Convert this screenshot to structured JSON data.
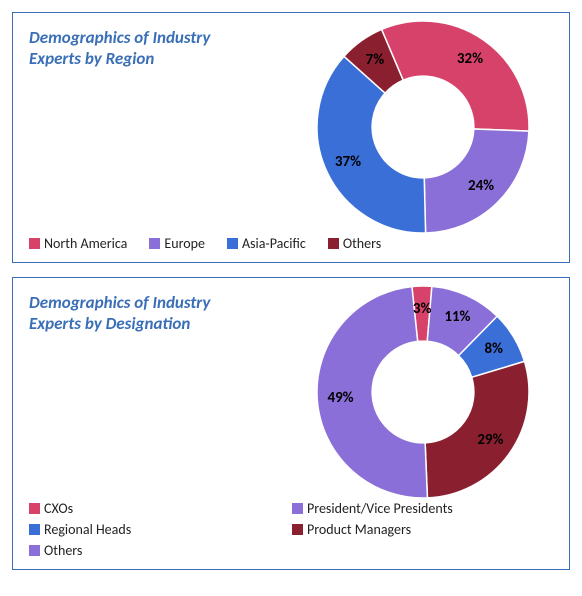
{
  "panels": [
    {
      "title": "Demographics of Industry Experts by Region",
      "donut": {
        "inner_ratio": 0.48,
        "rotation_deg": -23,
        "label_radius": 0.78,
        "slices": [
          {
            "label": "North America",
            "value": 32,
            "color": "#d6426a",
            "text": "32%"
          },
          {
            "label": "Europe",
            "value": 24,
            "color": "#8a6fd8",
            "text": "24%"
          },
          {
            "label": "Asia-Pacific",
            "value": 37,
            "color": "#3a6fd8",
            "text": "37%"
          },
          {
            "label": "Others",
            "value": 7,
            "color": "#8a1f2f",
            "text": "7%"
          }
        ]
      },
      "legend_cols": 4
    },
    {
      "title": "Demographics of Industry Experts by Designation",
      "donut": {
        "inner_ratio": 0.48,
        "rotation_deg": -6,
        "label_radius": 0.78,
        "slices": [
          {
            "label": "CXOs",
            "value": 3,
            "color": "#d6426a",
            "text": "3%"
          },
          {
            "label": "President/Vice Presidents",
            "value": 11,
            "color": "#8a6fd8",
            "text": "11%"
          },
          {
            "label": "Regional Heads",
            "value": 8,
            "color": "#3a6fd8",
            "text": "8%"
          },
          {
            "label": "Product Managers",
            "value": 29,
            "color": "#8a1f2f",
            "text": "29%"
          },
          {
            "label": "Others",
            "value": 49,
            "color": "#8a6fd8",
            "text": "49%"
          }
        ]
      },
      "legend_cols": 2
    }
  ],
  "border_color": "#3a6fb7",
  "title_color": "#3a6fb7",
  "title_fontsize": 17,
  "label_fontsize": 15,
  "legend_fontsize": 14
}
